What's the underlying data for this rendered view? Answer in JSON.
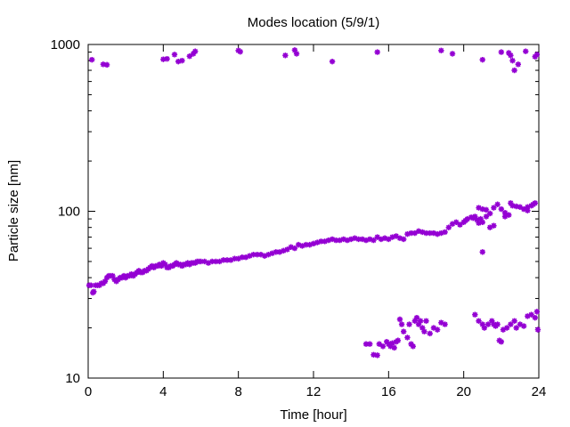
{
  "chart_data": {
    "type": "scatter",
    "title": "Modes location (5/9/1)",
    "xlabel": "Time [hour]",
    "ylabel": "Particle size [nm]",
    "xlim": [
      0,
      24
    ],
    "ylim": [
      10,
      1000
    ],
    "yscale": "log",
    "grid": false,
    "legend": "none",
    "color": "#9400d3",
    "xticks": [
      {
        "value": 0,
        "label": "0"
      },
      {
        "value": 4,
        "label": "4"
      },
      {
        "value": 8,
        "label": "8"
      },
      {
        "value": 12,
        "label": "12"
      },
      {
        "value": 16,
        "label": "16"
      },
      {
        "value": 20,
        "label": "20"
      },
      {
        "value": 24,
        "label": "24"
      }
    ],
    "yticks": [
      {
        "value": 10,
        "label": "10"
      },
      {
        "value": 100,
        "label": "100"
      },
      {
        "value": 1000,
        "label": "1000"
      }
    ],
    "series": [
      {
        "points": [
          [
            0.05,
            36
          ],
          [
            0.15,
            36
          ],
          [
            0.25,
            32.5
          ],
          [
            0.3,
            33
          ],
          [
            0.4,
            36
          ],
          [
            0.5,
            36
          ],
          [
            0.6,
            36
          ],
          [
            0.7,
            37
          ],
          [
            0.8,
            37
          ],
          [
            0.9,
            38
          ],
          [
            1.0,
            40
          ],
          [
            1.1,
            41
          ],
          [
            1.2,
            41
          ],
          [
            1.3,
            41
          ],
          [
            1.4,
            39
          ],
          [
            1.5,
            38
          ],
          [
            1.6,
            39
          ],
          [
            1.7,
            40
          ],
          [
            1.8,
            40
          ],
          [
            1.9,
            41
          ],
          [
            2.0,
            40
          ],
          [
            2.1,
            41
          ],
          [
            2.2,
            41
          ],
          [
            2.3,
            42
          ],
          [
            2.4,
            41
          ],
          [
            2.5,
            42
          ],
          [
            2.6,
            43
          ],
          [
            2.7,
            44
          ],
          [
            2.8,
            43
          ],
          [
            2.9,
            43
          ],
          [
            3.0,
            44
          ],
          [
            3.1,
            44
          ],
          [
            3.2,
            45
          ],
          [
            3.3,
            46
          ],
          [
            3.4,
            47
          ],
          [
            3.5,
            46
          ],
          [
            3.6,
            47
          ],
          [
            3.7,
            47
          ],
          [
            3.8,
            48
          ],
          [
            3.9,
            47
          ],
          [
            4.0,
            49
          ],
          [
            4.1,
            48
          ],
          [
            4.2,
            46
          ],
          [
            4.3,
            46
          ],
          [
            4.4,
            47
          ],
          [
            4.5,
            47
          ],
          [
            4.6,
            48
          ],
          [
            4.7,
            49
          ],
          [
            4.8,
            48
          ],
          [
            4.9,
            48
          ],
          [
            5.0,
            47
          ],
          [
            5.1,
            48
          ],
          [
            5.2,
            48
          ],
          [
            5.3,
            49
          ],
          [
            5.4,
            48
          ],
          [
            5.5,
            49
          ],
          [
            5.6,
            49
          ],
          [
            5.7,
            49
          ],
          [
            5.8,
            50
          ],
          [
            5.9,
            50
          ],
          [
            6.0,
            50
          ],
          [
            6.2,
            50
          ],
          [
            6.4,
            49
          ],
          [
            6.6,
            50
          ],
          [
            6.8,
            50
          ],
          [
            7.0,
            50
          ],
          [
            7.2,
            51
          ],
          [
            7.4,
            51
          ],
          [
            7.6,
            51
          ],
          [
            7.8,
            52
          ],
          [
            8.0,
            52
          ],
          [
            8.2,
            53
          ],
          [
            8.4,
            53
          ],
          [
            8.6,
            54
          ],
          [
            8.8,
            55
          ],
          [
            9.0,
            55
          ],
          [
            9.2,
            55
          ],
          [
            9.4,
            54
          ],
          [
            9.6,
            55
          ],
          [
            9.8,
            56
          ],
          [
            10.0,
            57
          ],
          [
            10.2,
            57
          ],
          [
            10.4,
            58
          ],
          [
            10.6,
            59
          ],
          [
            10.8,
            61
          ],
          [
            11.0,
            60
          ],
          [
            11.2,
            63
          ],
          [
            11.4,
            62
          ],
          [
            11.6,
            63
          ],
          [
            11.8,
            63
          ],
          [
            12.0,
            64
          ],
          [
            12.2,
            65
          ],
          [
            12.4,
            66
          ],
          [
            12.6,
            66
          ],
          [
            12.8,
            67
          ],
          [
            13.0,
            68
          ],
          [
            13.2,
            67
          ],
          [
            13.4,
            67
          ],
          [
            13.6,
            68
          ],
          [
            13.8,
            67
          ],
          [
            14.0,
            68
          ],
          [
            14.2,
            69
          ],
          [
            14.4,
            68
          ],
          [
            14.6,
            68
          ],
          [
            14.8,
            67
          ],
          [
            15.0,
            68
          ],
          [
            15.2,
            67
          ],
          [
            15.4,
            70
          ],
          [
            15.6,
            68
          ],
          [
            15.8,
            69
          ],
          [
            16.0,
            68
          ],
          [
            16.2,
            70
          ],
          [
            16.4,
            71
          ],
          [
            16.6,
            69
          ],
          [
            16.8,
            68
          ],
          [
            17.0,
            73
          ],
          [
            17.2,
            74
          ],
          [
            17.4,
            74
          ],
          [
            17.6,
            76
          ],
          [
            17.8,
            75
          ],
          [
            18.0,
            74
          ],
          [
            18.2,
            74
          ],
          [
            18.4,
            74
          ],
          [
            18.6,
            73
          ],
          [
            18.8,
            74
          ],
          [
            19.0,
            75
          ],
          [
            19.2,
            80
          ],
          [
            19.4,
            84
          ],
          [
            19.6,
            86
          ],
          [
            19.8,
            83
          ],
          [
            20.0,
            86
          ],
          [
            20.1,
            88
          ],
          [
            20.2,
            90
          ],
          [
            20.4,
            92
          ],
          [
            20.5,
            91
          ],
          [
            20.6,
            93
          ],
          [
            20.7,
            89
          ],
          [
            20.8,
            85
          ],
          [
            20.9,
            90
          ],
          [
            21.0,
            86
          ],
          [
            21.2,
            93
          ],
          [
            21.4,
            97
          ],
          [
            21.6,
            105
          ],
          [
            21.8,
            110
          ],
          [
            22.0,
            103
          ],
          [
            22.2,
            98
          ],
          [
            22.4,
            95
          ],
          [
            22.6,
            108
          ],
          [
            22.8,
            107
          ],
          [
            23.0,
            106
          ],
          [
            23.2,
            103
          ],
          [
            23.4,
            106
          ],
          [
            23.6,
            108
          ],
          [
            23.8,
            112
          ],
          [
            20.8,
            105
          ],
          [
            21.0,
            103
          ],
          [
            21.2,
            102
          ],
          [
            21.4,
            80
          ],
          [
            21.6,
            82
          ],
          [
            21.0,
            57
          ],
          [
            22.2,
            93
          ],
          [
            22.5,
            112
          ],
          [
            23.4,
            101
          ],
          [
            23.7,
            110
          ],
          [
            0.2,
            810
          ],
          [
            0.8,
            760
          ],
          [
            1.0,
            755
          ],
          [
            4.0,
            815
          ],
          [
            4.2,
            820
          ],
          [
            4.6,
            870
          ],
          [
            4.8,
            790
          ],
          [
            5.0,
            800
          ],
          [
            5.4,
            850
          ],
          [
            5.6,
            880
          ],
          [
            5.7,
            910
          ],
          [
            8.0,
            920
          ],
          [
            8.1,
            905
          ],
          [
            10.5,
            860
          ],
          [
            11.0,
            925
          ],
          [
            11.1,
            880
          ],
          [
            13.0,
            790
          ],
          [
            15.4,
            900
          ],
          [
            18.8,
            920
          ],
          [
            19.4,
            880
          ],
          [
            21.0,
            810
          ],
          [
            22.0,
            900
          ],
          [
            22.4,
            890
          ],
          [
            22.5,
            860
          ],
          [
            22.6,
            800
          ],
          [
            22.7,
            700
          ],
          [
            22.9,
            760
          ],
          [
            23.3,
            910
          ],
          [
            23.8,
            845
          ],
          [
            23.9,
            870
          ],
          [
            14.8,
            16
          ],
          [
            15.0,
            16
          ],
          [
            15.2,
            13.8
          ],
          [
            15.4,
            13.7
          ],
          [
            15.5,
            16
          ],
          [
            15.7,
            15.5
          ],
          [
            15.9,
            16.5
          ],
          [
            16.0,
            16
          ],
          [
            16.1,
            15.5
          ],
          [
            16.2,
            16.2
          ],
          [
            16.3,
            15.2
          ],
          [
            16.4,
            16.5
          ],
          [
            16.5,
            16.8
          ],
          [
            16.6,
            22.5
          ],
          [
            16.7,
            21
          ],
          [
            16.8,
            19
          ],
          [
            17.0,
            17.5
          ],
          [
            17.1,
            21
          ],
          [
            17.2,
            16
          ],
          [
            17.3,
            15.5
          ],
          [
            17.4,
            22
          ],
          [
            17.5,
            23
          ],
          [
            17.6,
            21
          ],
          [
            17.7,
            22
          ],
          [
            17.8,
            20
          ],
          [
            17.9,
            19
          ],
          [
            18.0,
            22
          ],
          [
            18.2,
            18.5
          ],
          [
            18.4,
            20
          ],
          [
            18.6,
            19.5
          ],
          [
            18.8,
            21.5
          ],
          [
            19.0,
            21
          ],
          [
            20.6,
            24
          ],
          [
            20.8,
            22
          ],
          [
            21.0,
            21
          ],
          [
            21.1,
            20
          ],
          [
            21.3,
            21
          ],
          [
            21.5,
            22
          ],
          [
            21.6,
            21
          ],
          [
            21.7,
            20.5
          ],
          [
            21.8,
            21
          ],
          [
            21.9,
            16.8
          ],
          [
            22.0,
            16.5
          ],
          [
            22.1,
            19.5
          ],
          [
            22.3,
            20
          ],
          [
            22.5,
            21
          ],
          [
            22.7,
            22
          ],
          [
            22.8,
            20
          ],
          [
            23.0,
            21
          ],
          [
            23.2,
            20.5
          ],
          [
            23.4,
            23.5
          ],
          [
            23.6,
            24
          ],
          [
            23.8,
            23
          ],
          [
            23.9,
            25
          ],
          [
            23.95,
            19.5
          ]
        ]
      }
    ]
  }
}
